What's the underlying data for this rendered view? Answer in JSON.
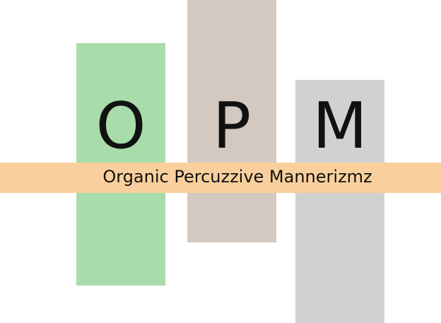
{
  "logo": {
    "letters": [
      "O",
      "P",
      "M"
    ],
    "tagline": "Organic Percuzzive Mannerizmz"
  },
  "colors": {
    "green_bar": "#a8dcab",
    "taupe_bar": "#d3c9c1",
    "gray_bar": "#d1d1d1",
    "orange_band": "#f9d09d",
    "text": "#111111",
    "background": "#ffffff"
  }
}
